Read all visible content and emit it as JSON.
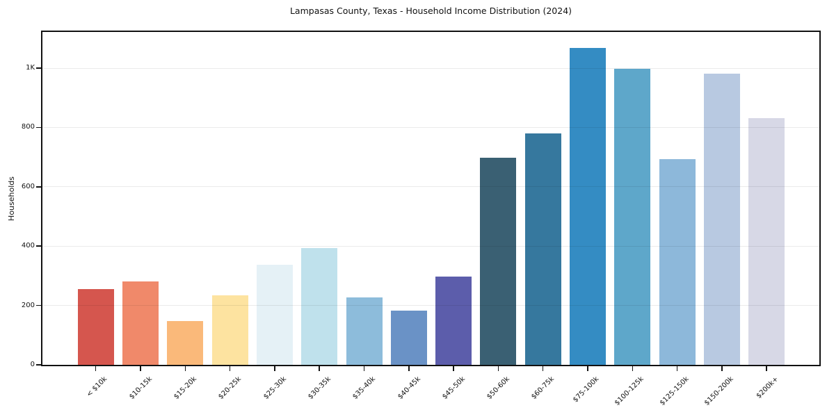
{
  "chart_data": {
    "type": "bar",
    "title": "Lampasas County, Texas - Household Income Distribution (2024)",
    "xlabel": "",
    "ylabel": "Households",
    "categories": [
      "< $10k",
      "$10-15k",
      "$15-20k",
      "$20-25k",
      "$25-30k",
      "$30-35k",
      "$35-40k",
      "$40-45k",
      "$45-50k",
      "$50-60k",
      "$60-75k",
      "$75-100k",
      "$100-125k",
      "$125-150k",
      "$150-200k",
      "$200k+"
    ],
    "values": [
      256,
      280,
      148,
      234,
      337,
      393,
      228,
      183,
      298,
      698,
      779,
      1068,
      999,
      694,
      981,
      832
    ],
    "bar_colors": [
      "#d5564e",
      "#f0896a",
      "#fab97a",
      "#fde3a0",
      "#e5f1f6",
      "#bfe1ec",
      "#8dbcdb",
      "#6a92c6",
      "#5c5dab",
      "#3a6073",
      "#36789e",
      "#348cc3",
      "#5ea7ca",
      "#8db8da",
      "#b8c9e1",
      "#d7d8e6"
    ],
    "ylim": [
      0,
      1122
    ],
    "yticks": {
      "values": [
        0,
        200,
        400,
        600,
        800,
        1000
      ],
      "labels": [
        "0",
        "200",
        "400",
        "600",
        "800",
        "1K"
      ]
    },
    "grid": "horizontal",
    "legend": "none",
    "background_color": "#ffffff",
    "axis_color": "#111111",
    "gridline_color": "#ebebeb",
    "text_color": "#111111"
  }
}
